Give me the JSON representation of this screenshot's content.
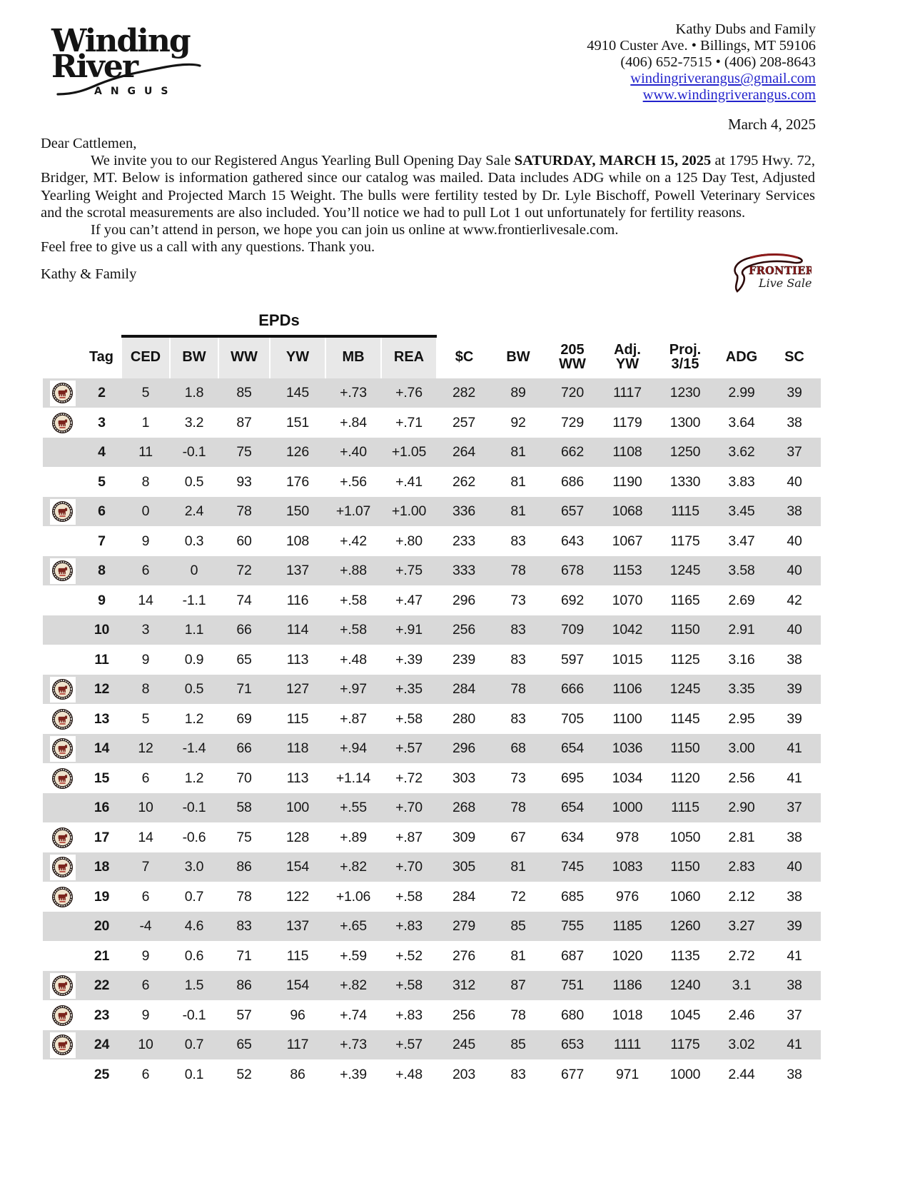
{
  "header": {
    "logo": {
      "word1": "Winding",
      "word2": "River",
      "sub": "ANGUS"
    },
    "contact": {
      "name": "Kathy Dubs and Family",
      "address": "4910 Custer Ave.  •  Billings, MT  59106",
      "phones": "(406) 652-7515  •  (406) 208-8643",
      "email": "windingriverangus@gmail.com",
      "website": "www.windingriverangus.com"
    },
    "date": "March 4, 2025"
  },
  "letter": {
    "greeting": "Dear Cattlemen,",
    "p1_before": "We invite you to our Registered Angus Yearling Bull Opening Day Sale ",
    "p1_bold": "SATURDAY, MARCH 15, 2025",
    "p1_after": " at 1795 Hwy. 72, Bridger, MT.  Below is information gathered since our catalog was mailed. Data includes ADG while on a 125 Day Test, Adjusted Yearling Weight and Projected March 15 Weight.  The bulls were fertility tested by Dr. Lyle Bischoff, Powell Veterinary Services and the scrotal measurements are also included.  You’ll notice we had to pull Lot 1 out unfortunately for fertility reasons.",
    "p2_line1": "If you can’t attend in person, we hope you can join us online at www.frontierlivesale.com.",
    "p2_line2": "Feel free to give us a call with any questions.  Thank you.",
    "signature": "Kathy & Family"
  },
  "frontier_logo": {
    "line1": "FRONTIER",
    "line2": "Live Sale"
  },
  "colors": {
    "stripe_gray": "#d9d9d9",
    "header_cell_gray": "#e8e8e8",
    "link_blue": "#2222cc",
    "frontier_red": "#8b1a1a",
    "badge_bull_red": "#7b241c"
  },
  "table": {
    "epds_label": "EPDs",
    "columns": [
      "Tag",
      "CED",
      "BW",
      "WW",
      "YW",
      "MB",
      "REA",
      "$C",
      "BW",
      "205\nWW",
      "Adj.\nYW",
      "Proj.\n3/15",
      "ADG",
      "SC"
    ],
    "badge_icon_meaning": "bull-badge-icon",
    "rows": [
      {
        "icon": true,
        "tag": "2",
        "values": [
          "5",
          "1.8",
          "85",
          "145",
          "+.73",
          "+.76",
          "282",
          "89",
          "720",
          "1117",
          "1230",
          "2.99",
          "39"
        ]
      },
      {
        "icon": true,
        "tag": "3",
        "values": [
          "1",
          "3.2",
          "87",
          "151",
          "+.84",
          "+.71",
          "257",
          "92",
          "729",
          "1179",
          "1300",
          "3.64",
          "38"
        ]
      },
      {
        "icon": false,
        "tag": "4",
        "values": [
          "11",
          "-0.1",
          "75",
          "126",
          "+.40",
          "+1.05",
          "264",
          "81",
          "662",
          "1108",
          "1250",
          "3.62",
          "37"
        ]
      },
      {
        "icon": false,
        "tag": "5",
        "values": [
          "8",
          "0.5",
          "93",
          "176",
          "+.56",
          "+.41",
          "262",
          "81",
          "686",
          "1190",
          "1330",
          "3.83",
          "40"
        ]
      },
      {
        "icon": true,
        "tag": "6",
        "values": [
          "0",
          "2.4",
          "78",
          "150",
          "+1.07",
          "+1.00",
          "336",
          "81",
          "657",
          "1068",
          "1115",
          "3.45",
          "38"
        ]
      },
      {
        "icon": false,
        "tag": "7",
        "values": [
          "9",
          "0.3",
          "60",
          "108",
          "+.42",
          "+.80",
          "233",
          "83",
          "643",
          "1067",
          "1175",
          "3.47",
          "40"
        ]
      },
      {
        "icon": true,
        "tag": "8",
        "values": [
          "6",
          "0",
          "72",
          "137",
          "+.88",
          "+.75",
          "333",
          "78",
          "678",
          "1153",
          "1245",
          "3.58",
          "40"
        ]
      },
      {
        "icon": false,
        "tag": "9",
        "values": [
          "14",
          "-1.1",
          "74",
          "116",
          "+.58",
          "+.47",
          "296",
          "73",
          "692",
          "1070",
          "1165",
          "2.69",
          "42"
        ]
      },
      {
        "icon": false,
        "tag": "10",
        "values": [
          "3",
          "1.1",
          "66",
          "114",
          "+.58",
          "+.91",
          "256",
          "83",
          "709",
          "1042",
          "1150",
          "2.91",
          "40"
        ]
      },
      {
        "icon": false,
        "tag": "11",
        "values": [
          "9",
          "0.9",
          "65",
          "113",
          "+.48",
          "+.39",
          "239",
          "83",
          "597",
          "1015",
          "1125",
          "3.16",
          "38"
        ]
      },
      {
        "icon": true,
        "tag": "12",
        "values": [
          "8",
          "0.5",
          "71",
          "127",
          "+.97",
          "+.35",
          "284",
          "78",
          "666",
          "1106",
          "1245",
          "3.35",
          "39"
        ]
      },
      {
        "icon": true,
        "tag": "13",
        "values": [
          "5",
          "1.2",
          "69",
          "115",
          "+.87",
          "+.58",
          "280",
          "83",
          "705",
          "1100",
          "1145",
          "2.95",
          "39"
        ]
      },
      {
        "icon": true,
        "tag": "14",
        "values": [
          "12",
          "-1.4",
          "66",
          "118",
          "+.94",
          "+.57",
          "296",
          "68",
          "654",
          "1036",
          "1150",
          "3.00",
          "41"
        ]
      },
      {
        "icon": true,
        "tag": "15",
        "values": [
          "6",
          "1.2",
          "70",
          "113",
          "+1.14",
          "+.72",
          "303",
          "73",
          "695",
          "1034",
          "1120",
          "2.56",
          "41"
        ]
      },
      {
        "icon": false,
        "tag": "16",
        "values": [
          "10",
          "-0.1",
          "58",
          "100",
          "+.55",
          "+.70",
          "268",
          "78",
          "654",
          "1000",
          "1115",
          "2.90",
          "37"
        ]
      },
      {
        "icon": true,
        "tag": "17",
        "values": [
          "14",
          "-0.6",
          "75",
          "128",
          "+.89",
          "+.87",
          "309",
          "67",
          "634",
          "978",
          "1050",
          "2.81",
          "38"
        ]
      },
      {
        "icon": true,
        "tag": "18",
        "values": [
          "7",
          "3.0",
          "86",
          "154",
          "+.82",
          "+.70",
          "305",
          "81",
          "745",
          "1083",
          "1150",
          "2.83",
          "40"
        ]
      },
      {
        "icon": true,
        "tag": "19",
        "values": [
          "6",
          "0.7",
          "78",
          "122",
          "+1.06",
          "+.58",
          "284",
          "72",
          "685",
          "976",
          "1060",
          "2.12",
          "38"
        ]
      },
      {
        "icon": false,
        "tag": "20",
        "values": [
          "-4",
          "4.6",
          "83",
          "137",
          "+.65",
          "+.83",
          "279",
          "85",
          "755",
          "1185",
          "1260",
          "3.27",
          "39"
        ]
      },
      {
        "icon": false,
        "tag": "21",
        "values": [
          "9",
          "0.6",
          "71",
          "115",
          "+.59",
          "+.52",
          "276",
          "81",
          "687",
          "1020",
          "1135",
          "2.72",
          "41"
        ]
      },
      {
        "icon": true,
        "tag": "22",
        "values": [
          "6",
          "1.5",
          "86",
          "154",
          "+.82",
          "+.58",
          "312",
          "87",
          "751",
          "1186",
          "1240",
          "3.1",
          "38"
        ]
      },
      {
        "icon": true,
        "tag": "23",
        "values": [
          "9",
          "-0.1",
          "57",
          "96",
          "+.74",
          "+.83",
          "256",
          "78",
          "680",
          "1018",
          "1045",
          "2.46",
          "37"
        ]
      },
      {
        "icon": true,
        "tag": "24",
        "values": [
          "10",
          "0.7",
          "65",
          "117",
          "+.73",
          "+.57",
          "245",
          "85",
          "653",
          "1111",
          "1175",
          "3.02",
          "41"
        ]
      },
      {
        "icon": false,
        "tag": "25",
        "values": [
          "6",
          "0.1",
          "52",
          "86",
          "+.39",
          "+.48",
          "203",
          "83",
          "677",
          "971",
          "1000",
          "2.44",
          "38"
        ]
      }
    ]
  }
}
